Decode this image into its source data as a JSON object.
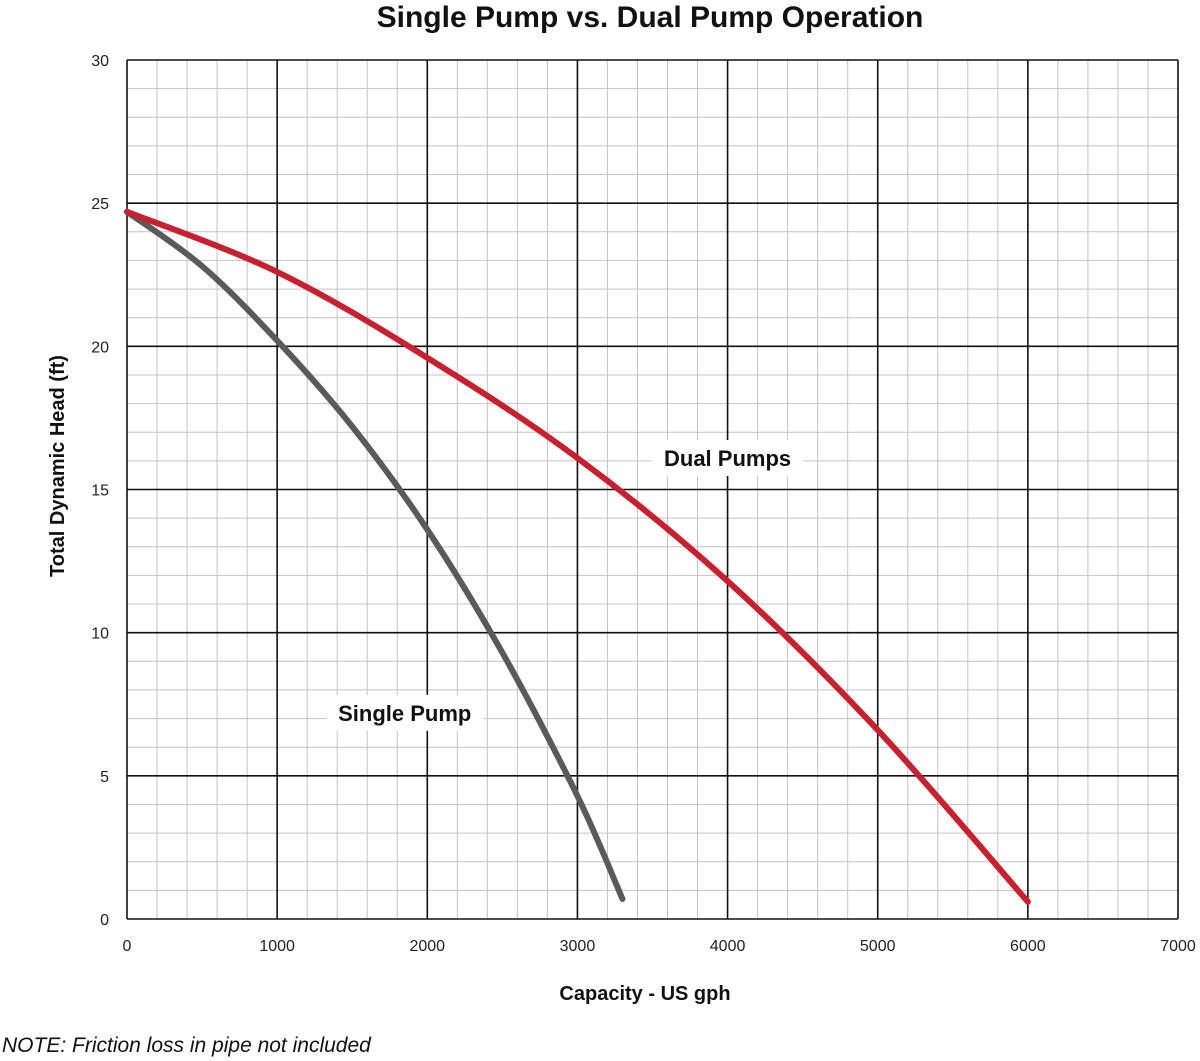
{
  "chart_data": {
    "type": "line",
    "title": "Single Pump vs. Dual Pump Operation",
    "xlabel": "Capacity - US gph",
    "ylabel": "Total Dynamic Head (ft)",
    "xlim": [
      0,
      7000
    ],
    "ylim": [
      0,
      30
    ],
    "xticks": [
      0,
      1000,
      2000,
      3000,
      4000,
      5000,
      6000,
      7000
    ],
    "yticks": [
      0,
      5,
      10,
      15,
      20,
      25,
      30
    ],
    "x_minor_step": 200,
    "y_minor_step": 1,
    "grid": true,
    "series": [
      {
        "name": "Single Pump",
        "color": "#5a5a5a",
        "x": [
          0,
          500,
          1000,
          1500,
          2000,
          2500,
          3000,
          3300
        ],
        "y": [
          24.7,
          22.8,
          20.2,
          17.2,
          13.6,
          9.3,
          4.3,
          0.7
        ]
      },
      {
        "name": "Dual Pumps",
        "color": "#c8202f",
        "x": [
          0,
          1000,
          2000,
          3000,
          4000,
          5000,
          6000
        ],
        "y": [
          24.7,
          22.6,
          19.6,
          16.1,
          11.8,
          6.6,
          0.6
        ]
      }
    ],
    "annotations": [
      {
        "text": "Single Pump",
        "x": 1850,
        "y": 7.2
      },
      {
        "text": "Dual Pumps",
        "x": 4000,
        "y": 16.1
      }
    ]
  },
  "footnote": "NOTE: Friction loss in pipe not included"
}
